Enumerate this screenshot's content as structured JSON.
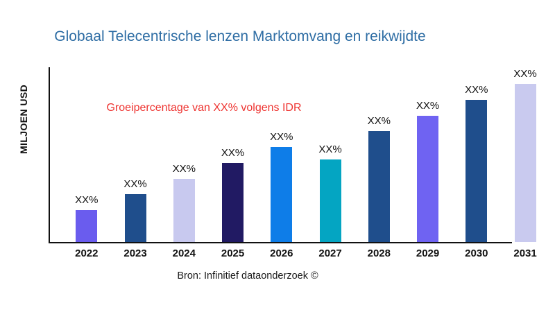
{
  "title": {
    "text": "Globaal Telecentrische lenzen Marktomvang en reikwijdte",
    "color": "#2E6DA4"
  },
  "annotation": {
    "text": "Groeipercentage van XX% volgens IDR",
    "color": "#EE3431"
  },
  "y_axis": {
    "label": "MILJOEN USD"
  },
  "footer": {
    "text": "Bron: Infinitief dataonderzoek ©"
  },
  "chart_data": {
    "type": "bar",
    "title": "Globaal Telecentrische lenzen Marktomvang en reikwijdte",
    "xlabel": "",
    "ylabel": "MILJOEN USD",
    "annotation": "Groeipercentage van XX% volgens IDR",
    "source": "Bron: Infinitief dataonderzoek ©",
    "categories": [
      "2022",
      "2023",
      "2024",
      "2025",
      "2026",
      "2027",
      "2028",
      "2029",
      "2030",
      "2031"
    ],
    "series": [
      {
        "name": "Marktomvang (MILJOEN USD)",
        "values": [
          46,
          69,
          91,
          114,
          137,
          119,
          160,
          182,
          205,
          228
        ],
        "note": "y-axis has no numeric ticks; values are relative bar heights in px (baseline 0 = axis)"
      }
    ],
    "data_labels": [
      "XX%",
      "XX%",
      "XX%",
      "XX%",
      "XX%",
      "XX%",
      "XX%",
      "XX%",
      "XX%",
      "XX%"
    ],
    "bar_colors": [
      "#6A5CEE",
      "#1F4E8C",
      "#C8C9EF",
      "#211A63",
      "#0E7DE8",
      "#04A5C2",
      "#1F4E8C",
      "#6F63F2",
      "#1F4E8C",
      "#C9CAEF"
    ],
    "legend": "none",
    "grid": false,
    "axis_color": "#111111",
    "background": "#ffffff"
  }
}
